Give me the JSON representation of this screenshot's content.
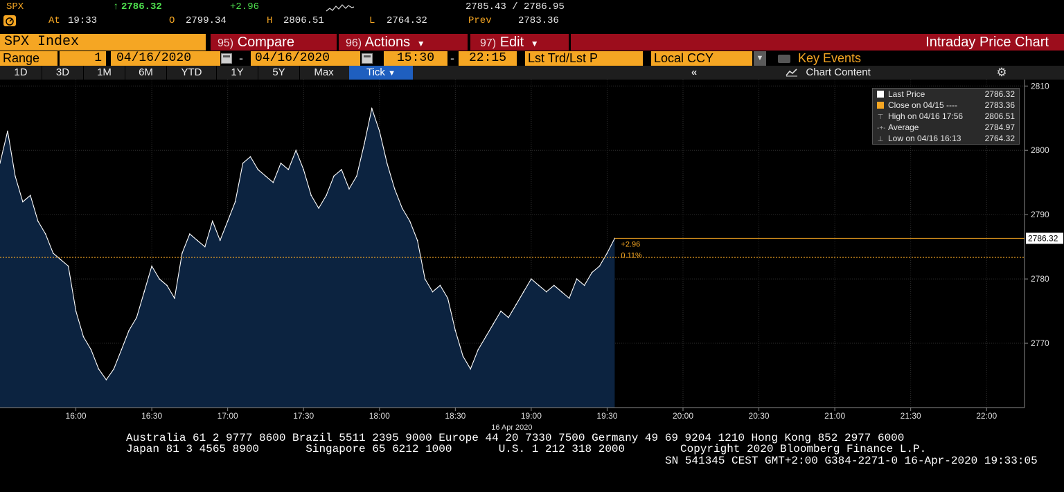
{
  "quote": {
    "ticker": "SPX",
    "last_arrow": "↑",
    "last": "2786.32",
    "change": "+2.96",
    "bid_ask": "2785.43 / 2786.95",
    "at_label": "At",
    "time": "19:33",
    "open_label": "O",
    "open": "2799.34",
    "high_label": "H",
    "high": "2806.51",
    "low_label": "L",
    "low": "2764.32",
    "prev_label": "Prev",
    "prev": "2783.36"
  },
  "function_bar": {
    "ticker": "SPX Index",
    "compare_num": "95)",
    "compare": "Compare",
    "actions_num": "96)",
    "actions": "Actions",
    "edit_num": "97)",
    "edit": "Edit",
    "title": "Intraday Price Chart"
  },
  "range_bar": {
    "range_label": "Range",
    "range_value": "1",
    "start_date": "04/16/2020",
    "dash": "-",
    "end_date": "04/16/2020",
    "start_time": "15:30",
    "time_dash": "-",
    "end_time": "22:15",
    "field": "Lst Trd/Lst P",
    "currency": "Local CCY",
    "key_events": "Key Events"
  },
  "period_bar": {
    "periods": [
      "1D",
      "3D",
      "1M",
      "6M",
      "YTD",
      "1Y",
      "5Y",
      "Max"
    ],
    "active": "Tick",
    "collapse": "«",
    "chart_content": "Chart Content",
    "gear": "⚙"
  },
  "legend": {
    "rows": [
      {
        "label": "Last Price",
        "value": "2786.32",
        "color": "#ffffff"
      },
      {
        "label": "Close on 04/15 ----",
        "value": "2783.36",
        "color": "#f5a623"
      },
      {
        "label": "High on 04/16 17:56",
        "value": "2806.51",
        "icon": "high-icon"
      },
      {
        "label": "Average",
        "value": "2784.97",
        "icon": "average-icon"
      },
      {
        "label": "Low on 04/16 16:13",
        "value": "2764.32",
        "icon": "low-icon"
      }
    ]
  },
  "chart_data": {
    "type": "area",
    "title": "Intraday Price Chart",
    "xlabel": "16 Apr 2020",
    "ylabel": "",
    "ylim": [
      2760,
      2811
    ],
    "y_ticks": [
      2770,
      2780,
      2790,
      2800,
      2810
    ],
    "x_ticks": [
      "16:00",
      "16:30",
      "17:00",
      "17:30",
      "18:00",
      "18:30",
      "19:00",
      "19:30",
      "20:00",
      "20:30",
      "21:00",
      "21:30",
      "22:00"
    ],
    "x_range": [
      "15:30",
      "22:15"
    ],
    "grid": true,
    "last_price": 2786.32,
    "last_price_label": "2786.32",
    "prev_close": 2783.36,
    "change_label": "+2.96",
    "change_pct_label": "0.11%",
    "colors": {
      "line": "#ffffff",
      "fill": "#0c2340",
      "prev_close": "#f5a623",
      "last_line": "#f5a623"
    },
    "series": [
      {
        "name": "Last Price",
        "x": [
          "15:30",
          "15:33",
          "15:36",
          "15:39",
          "15:42",
          "15:45",
          "15:48",
          "15:51",
          "15:54",
          "15:57",
          "16:00",
          "16:03",
          "16:06",
          "16:09",
          "16:12",
          "16:15",
          "16:18",
          "16:21",
          "16:24",
          "16:27",
          "16:30",
          "16:33",
          "16:36",
          "16:39",
          "16:42",
          "16:45",
          "16:48",
          "16:51",
          "16:54",
          "16:57",
          "17:00",
          "17:03",
          "17:06",
          "17:09",
          "17:12",
          "17:15",
          "17:18",
          "17:21",
          "17:24",
          "17:27",
          "17:30",
          "17:33",
          "17:36",
          "17:39",
          "17:42",
          "17:45",
          "17:48",
          "17:51",
          "17:54",
          "17:57",
          "18:00",
          "18:03",
          "18:06",
          "18:09",
          "18:12",
          "18:15",
          "18:18",
          "18:21",
          "18:24",
          "18:27",
          "18:30",
          "18:33",
          "18:36",
          "18:39",
          "18:42",
          "18:45",
          "18:48",
          "18:51",
          "18:54",
          "18:57",
          "19:00",
          "19:03",
          "19:06",
          "19:09",
          "19:12",
          "19:15",
          "19:18",
          "19:21",
          "19:24",
          "19:27",
          "19:30",
          "19:33"
        ],
        "values": [
          2798,
          2803,
          2796,
          2792,
          2793,
          2789,
          2787,
          2784,
          2783,
          2782,
          2775,
          2771,
          2769,
          2766,
          2764.32,
          2766,
          2769,
          2772,
          2774,
          2778,
          2782,
          2780,
          2779,
          2777,
          2784,
          2787,
          2786,
          2785,
          2789,
          2786,
          2789,
          2792,
          2798,
          2799,
          2797,
          2796,
          2795,
          2798,
          2797,
          2800,
          2797,
          2793,
          2791,
          2793,
          2796,
          2797,
          2794,
          2796,
          2801,
          2806.51,
          2803,
          2798,
          2794,
          2791,
          2789,
          2786,
          2780,
          2778,
          2779,
          2777,
          2772,
          2768,
          2766,
          2769,
          2771,
          2773,
          2775,
          2774,
          2776,
          2778,
          2780,
          2779,
          2778,
          2779,
          2778,
          2777,
          2780,
          2779,
          2781,
          2782,
          2784,
          2786.32
        ]
      }
    ]
  },
  "footer": {
    "line1": "Australia 61 2 9777 8600 Brazil 5511 2395 9000 Europe 44 20 7330 7500 Germany 49 69 9204 1210 Hong Kong 852 2977 6000",
    "line2a": "Japan 81 3 4565 8900       Singapore 65 6212 1000       U.S. 1 212 318 2000",
    "line2b": "Copyright 2020 Bloomberg Finance L.P.",
    "line3": "SN 541345 CEST GMT+2:00 G384-2271-0 16-Apr-2020 19:33:05"
  }
}
